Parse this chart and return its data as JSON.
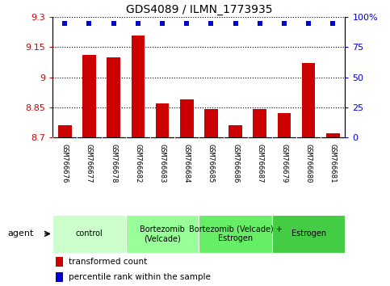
{
  "title": "GDS4089 / ILMN_1773935",
  "samples": [
    "GSM766676",
    "GSM766677",
    "GSM766678",
    "GSM766682",
    "GSM766683",
    "GSM766684",
    "GSM766685",
    "GSM766686",
    "GSM766687",
    "GSM766679",
    "GSM766680",
    "GSM766681"
  ],
  "bar_values": [
    8.76,
    9.11,
    9.1,
    9.21,
    8.87,
    8.89,
    8.84,
    8.76,
    8.84,
    8.82,
    9.07,
    8.72
  ],
  "percentile_values": [
    95,
    95,
    95,
    95,
    95,
    95,
    95,
    95,
    95,
    95,
    95,
    95
  ],
  "bar_color": "#cc0000",
  "percentile_color": "#0000cc",
  "ylim_left": [
    8.7,
    9.3
  ],
  "ylim_right": [
    0,
    100
  ],
  "yticks_left": [
    8.7,
    8.85,
    9.0,
    9.15,
    9.3
  ],
  "ytick_labels_left": [
    "8.7",
    "8.85",
    "9",
    "9.15",
    "9.3"
  ],
  "yticks_right": [
    0,
    25,
    50,
    75,
    100
  ],
  "ytick_labels_right": [
    "0",
    "25",
    "50",
    "75",
    "100%"
  ],
  "bar_base": 8.7,
  "groups": [
    {
      "label": "control",
      "start": 0,
      "end": 3,
      "color": "#ccffcc"
    },
    {
      "label": "Bortezomib\n(Velcade)",
      "start": 3,
      "end": 6,
      "color": "#99ff99"
    },
    {
      "label": "Bortezomib (Velcade) +\nEstrogen",
      "start": 6,
      "end": 9,
      "color": "#66ee66"
    },
    {
      "label": "Estrogen",
      "start": 9,
      "end": 12,
      "color": "#44cc44"
    }
  ],
  "legend_bar_label": "transformed count",
  "legend_pct_label": "percentile rank within the sample",
  "agent_label": "agent",
  "sample_bg_color": "#cccccc",
  "sample_sep_color": "#ffffff",
  "plot_bg_color": "#ffffff"
}
